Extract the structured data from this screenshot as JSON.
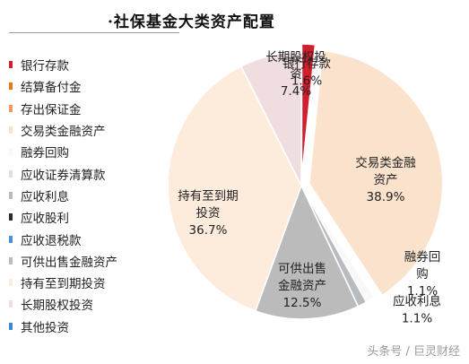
{
  "chart_data": {
    "type": "pie",
    "title": "·社保基金大类资产配置",
    "legend_position": "left",
    "slices": [
      {
        "name": "银行存款",
        "value": 1.6,
        "color": "#cf1e2e",
        "label_lines": [
          "银行存款",
          "1.6%"
        ],
        "label_color": "#222222"
      },
      {
        "name": "结算备付金",
        "value": 0.0,
        "color": "#e2781f",
        "label_lines": [],
        "label_color": "#222222"
      },
      {
        "name": "存出保证金",
        "value": 0.0,
        "color": "#ec9a5e",
        "label_lines": [],
        "label_color": "#222222"
      },
      {
        "name": "交易类金融资产",
        "value": 38.9,
        "color": "#fbe2cd",
        "label_lines": [
          "交易类金融",
          "资产",
          "38.9%"
        ],
        "label_color": "#222222"
      },
      {
        "name": "融券回购",
        "value": 1.1,
        "color": "#f8f8f8",
        "label_lines": [
          "融券回",
          "购",
          "1.1%"
        ],
        "label_color": "#222222"
      },
      {
        "name": "应收证券清算款",
        "value": 0.0,
        "color": "#dde0e6",
        "label_lines": [],
        "label_color": "#222222"
      },
      {
        "name": "应收利息",
        "value": 1.1,
        "color": "#b8bcc2",
        "label_lines": [
          "应收利息",
          "1.1%"
        ],
        "label_color": "#222222"
      },
      {
        "name": "应收股利",
        "value": 0.0,
        "color": "#2b2b2b",
        "label_lines": [],
        "label_color": "#222222"
      },
      {
        "name": "应收退税款",
        "value": 0.0,
        "color": "#4a90d9",
        "label_lines": [],
        "label_color": "#222222"
      },
      {
        "name": "可供出售金融资产",
        "value": 12.5,
        "color": "#bbbbbb",
        "label_lines": [
          "可供出售",
          "金融资产",
          "12.5%"
        ],
        "label_color": "#222222"
      },
      {
        "name": "持有至到期投资",
        "value": 36.7,
        "color": "#fdebdc",
        "label_lines": [
          "持有至到期",
          "投资",
          "36.7%"
        ],
        "label_color": "#222222"
      },
      {
        "name": "长期股权投资",
        "value": 7.4,
        "color": "#f0dde0",
        "label_lines": [
          "长期股权投",
          "资",
          "7.4%"
        ],
        "label_color": "#222222"
      },
      {
        "name": "其他投资",
        "value": 0.0,
        "color": "#3a86d2",
        "label_lines": [],
        "label_color": "#222222"
      }
    ]
  },
  "watermark": "头条号 / 巨灵财经"
}
